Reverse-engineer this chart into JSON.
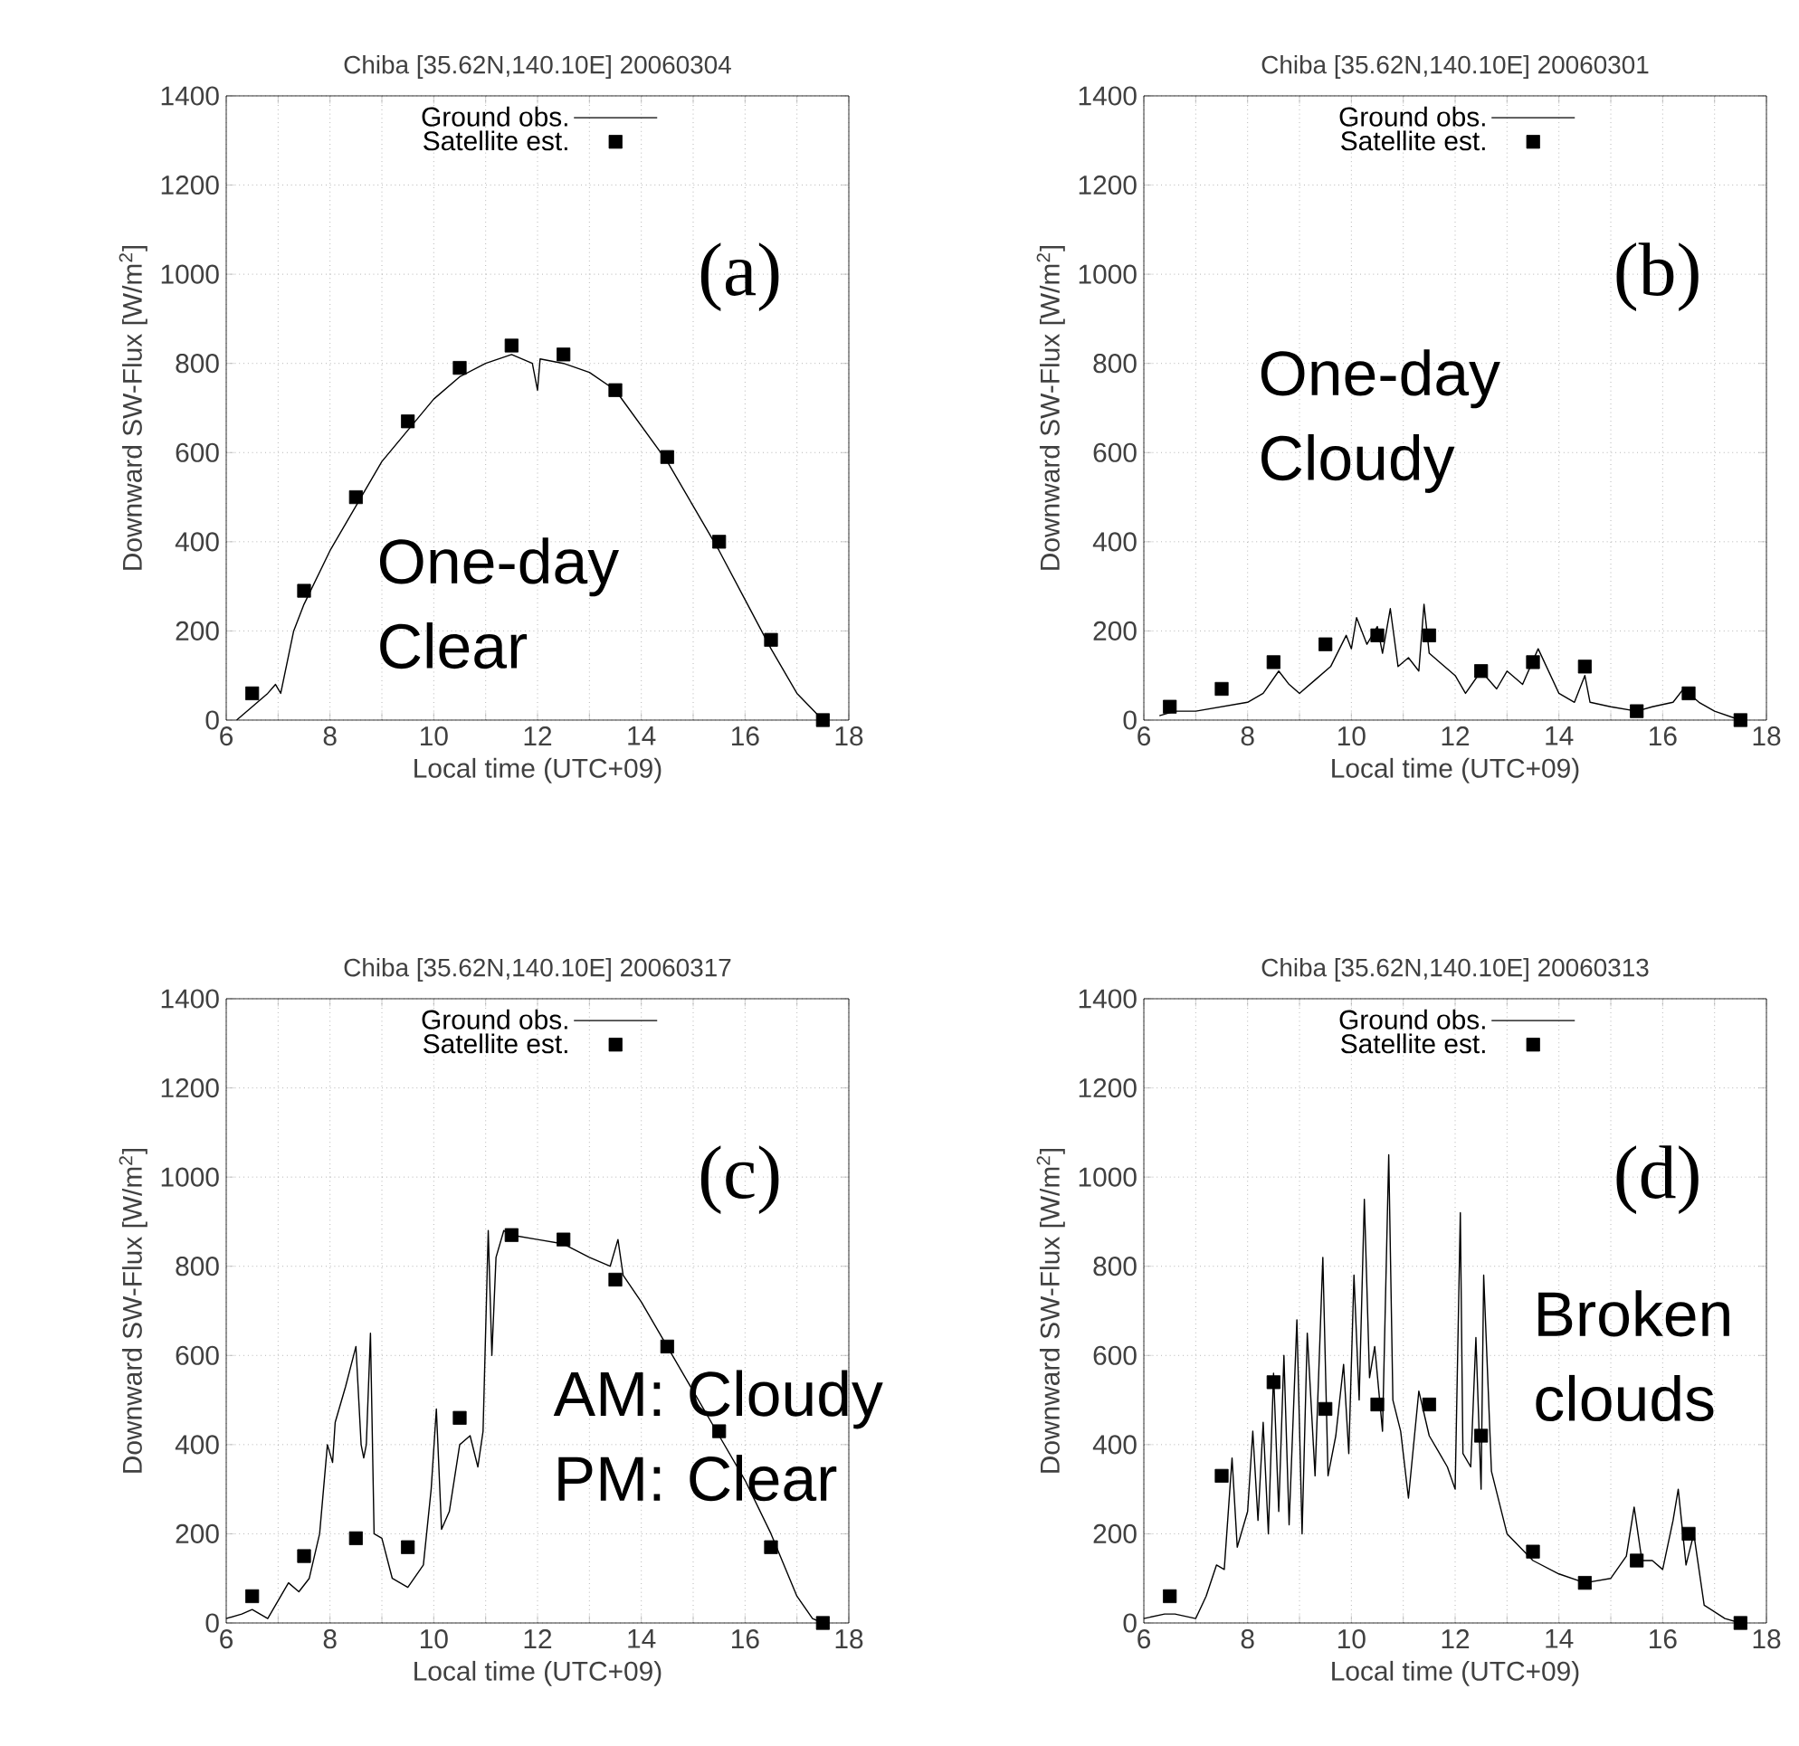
{
  "chart_data": [
    {
      "type": "line",
      "title": "Chiba [35.62N,140.10E] 20060304",
      "xlabel": "Local time (UTC+09)",
      "ylabel": "Downward SW-Flux [W/m$^{2}$]",
      "annotations": [
        "(a)",
        "One-day Clear"
      ],
      "xlim": [
        6,
        18
      ],
      "ylim": [
        0,
        1400
      ],
      "xticks": [
        6,
        {
          "value": 7,
          "label": null
        },
        8,
        {
          "value": 9,
          "label": null
        },
        10,
        {
          "value": 11,
          "label": null
        },
        12,
        {
          "value": 13,
          "label": null
        },
        14,
        {
          "value": 15,
          "label": null
        },
        16,
        {
          "value": 17,
          "label": null
        },
        18
      ],
      "yticks": [
        0,
        200,
        400,
        600,
        800,
        1000,
        1200,
        1400
      ],
      "grid": true,
      "legend": "top",
      "series": [
        {
          "name": "Ground obs.",
          "type": "line",
          "color": "#000000",
          "marker": "none",
          "x": [
            6.2,
            6.5,
            6.8,
            6.95,
            7.05,
            7.3,
            7.5,
            8,
            8.5,
            9,
            9.5,
            10,
            10.5,
            11,
            11.5,
            11.9,
            12,
            12.05,
            12.5,
            13,
            13.5,
            14,
            14.5,
            15,
            15.5,
            16,
            16.5,
            17,
            17.5
          ],
          "values": [
            0,
            30,
            60,
            80,
            60,
            200,
            260,
            380,
            480,
            580,
            650,
            720,
            770,
            800,
            820,
            800,
            740,
            810,
            800,
            780,
            740,
            660,
            580,
            480,
            380,
            270,
            160,
            60,
            0
          ]
        },
        {
          "name": "Satellite est.",
          "type": "scatter",
          "color": "#000000",
          "marker": "square",
          "x": [
            6.5,
            7.5,
            8.5,
            9.5,
            10.5,
            11.5,
            12.5,
            13.5,
            14.5,
            15.5,
            16.5,
            17.5
          ],
          "values": [
            60,
            290,
            500,
            670,
            790,
            840,
            820,
            740,
            590,
            400,
            180,
            0
          ]
        }
      ]
    },
    {
      "type": "line",
      "title": "Chiba [35.62N,140.10E] 20060301",
      "xlabel": "Local time (UTC+09)",
      "ylabel": "Downward SW-Flux [W/m$^{2}$]",
      "annotations": [
        "(b)",
        "One-day Cloudy"
      ],
      "xlim": [
        6,
        18
      ],
      "ylim": [
        0,
        1400
      ],
      "xticks": [
        6,
        {
          "value": 7,
          "label": null
        },
        8,
        {
          "value": 9,
          "label": null
        },
        10,
        {
          "value": 11,
          "label": null
        },
        12,
        {
          "value": 13,
          "label": null
        },
        14,
        {
          "value": 15,
          "label": null
        },
        16,
        {
          "value": 17,
          "label": null
        },
        18
      ],
      "yticks": [
        0,
        200,
        400,
        600,
        800,
        1000,
        1200,
        1400
      ],
      "grid": true,
      "legend": "top",
      "series": [
        {
          "name": "Ground obs.",
          "type": "line",
          "color": "#000000",
          "marker": "none",
          "x": [
            6.3,
            6.6,
            7,
            7.5,
            8,
            8.3,
            8.6,
            8.8,
            9,
            9.3,
            9.6,
            9.9,
            10,
            10.1,
            10.3,
            10.5,
            10.6,
            10.75,
            10.9,
            11.1,
            11.3,
            11.4,
            11.5,
            11.7,
            12,
            12.2,
            12.5,
            12.8,
            13,
            13.3,
            13.6,
            13.8,
            14,
            14.3,
            14.5,
            14.6,
            15,
            15.5,
            15.8,
            16.2,
            16.4,
            16.7,
            17,
            17.5
          ],
          "values": [
            10,
            20,
            20,
            30,
            40,
            60,
            110,
            80,
            60,
            90,
            120,
            190,
            160,
            230,
            170,
            210,
            150,
            250,
            120,
            140,
            110,
            260,
            150,
            130,
            100,
            60,
            110,
            70,
            110,
            80,
            160,
            110,
            60,
            40,
            100,
            40,
            30,
            20,
            30,
            40,
            70,
            40,
            20,
            0
          ]
        },
        {
          "name": "Satellite est.",
          "type": "scatter",
          "color": "#000000",
          "marker": "square",
          "x": [
            6.5,
            7.5,
            8.5,
            9.5,
            10.5,
            11.5,
            12.5,
            13.5,
            14.5,
            15.5,
            16.5,
            17.5
          ],
          "values": [
            30,
            70,
            130,
            170,
            190,
            190,
            110,
            130,
            120,
            20,
            60,
            0
          ]
        }
      ]
    },
    {
      "type": "line",
      "title": "Chiba [35.62N,140.10E] 20060317",
      "xlabel": "Local time (UTC+09)",
      "ylabel": "Downward SW-Flux [W/m$^{2}$]",
      "annotations": [
        "(c)",
        "AM: Cloudy PM: Clear"
      ],
      "xlim": [
        6,
        18
      ],
      "ylim": [
        0,
        1400
      ],
      "xticks": [
        6,
        {
          "value": 7,
          "label": null
        },
        8,
        {
          "value": 9,
          "label": null
        },
        10,
        {
          "value": 11,
          "label": null
        },
        12,
        {
          "value": 13,
          "label": null
        },
        14,
        {
          "value": 15,
          "label": null
        },
        16,
        {
          "value": 17,
          "label": null
        },
        18
      ],
      "yticks": [
        0,
        200,
        400,
        600,
        800,
        1000,
        1200,
        1400
      ],
      "grid": true,
      "legend": "top",
      "series": [
        {
          "name": "Ground obs.",
          "type": "line",
          "color": "#000000",
          "marker": "none",
          "x": [
            6,
            6.3,
            6.5,
            6.8,
            7,
            7.2,
            7.4,
            7.6,
            7.8,
            7.95,
            8.05,
            8.1,
            8.3,
            8.5,
            8.6,
            8.65,
            8.7,
            8.78,
            8.85,
            9,
            9.2,
            9.5,
            9.8,
            9.95,
            10.05,
            10.15,
            10.3,
            10.5,
            10.7,
            10.85,
            10.95,
            11.05,
            11.12,
            11.2,
            11.35,
            11.5,
            12,
            12.5,
            13,
            13.4,
            13.55,
            13.65,
            14,
            14.5,
            15,
            15.5,
            16,
            16.5,
            17,
            17.3,
            17.5
          ],
          "values": [
            10,
            20,
            30,
            10,
            50,
            90,
            70,
            100,
            200,
            400,
            360,
            450,
            530,
            620,
            400,
            370,
            400,
            650,
            200,
            190,
            100,
            80,
            130,
            300,
            480,
            210,
            250,
            400,
            420,
            350,
            430,
            880,
            600,
            820,
            880,
            870,
            860,
            850,
            820,
            800,
            860,
            780,
            720,
            620,
            520,
            420,
            320,
            200,
            60,
            10,
            0
          ]
        },
        {
          "name": "Satellite est.",
          "type": "scatter",
          "color": "#000000",
          "marker": "square",
          "x": [
            6.5,
            7.5,
            8.5,
            9.5,
            10.5,
            11.5,
            12.5,
            13.5,
            14.5,
            15.5,
            16.5,
            17.5
          ],
          "values": [
            60,
            150,
            190,
            170,
            460,
            870,
            860,
            770,
            620,
            430,
            170,
            0
          ]
        }
      ]
    },
    {
      "type": "line",
      "title": "Chiba [35.62N,140.10E] 20060313",
      "xlabel": "Local time (UTC+09)",
      "ylabel": "Downward SW-Flux [W/m$^{2}$]",
      "annotations": [
        "(d)",
        "Broken clouds"
      ],
      "xlim": [
        6,
        18
      ],
      "ylim": [
        0,
        1400
      ],
      "xticks": [
        6,
        {
          "value": 7,
          "label": null
        },
        8,
        {
          "value": 9,
          "label": null
        },
        10,
        {
          "value": 11,
          "label": null
        },
        12,
        {
          "value": 13,
          "label": null
        },
        14,
        {
          "value": 15,
          "label": null
        },
        16,
        {
          "value": 17,
          "label": null
        },
        18
      ],
      "yticks": [
        0,
        200,
        400,
        600,
        800,
        1000,
        1200,
        1400
      ],
      "grid": true,
      "legend": "top",
      "series": [
        {
          "name": "Ground obs.",
          "type": "line",
          "color": "#000000",
          "marker": "none",
          "x": [
            6,
            6.4,
            6.6,
            7,
            7.2,
            7.4,
            7.55,
            7.7,
            7.8,
            8,
            8.1,
            8.2,
            8.3,
            8.4,
            8.5,
            8.6,
            8.7,
            8.8,
            8.95,
            9.05,
            9.15,
            9.3,
            9.45,
            9.55,
            9.7,
            9.85,
            9.95,
            10.05,
            10.15,
            10.25,
            10.35,
            10.45,
            10.6,
            10.72,
            10.8,
            10.95,
            11.1,
            11.3,
            11.5,
            11.7,
            11.85,
            12,
            12.1,
            12.15,
            12.3,
            12.4,
            12.5,
            12.55,
            12.7,
            13,
            13.5,
            14,
            14.5,
            15,
            15.3,
            15.45,
            15.6,
            15.8,
            16,
            16.2,
            16.3,
            16.45,
            16.6,
            16.8,
            17.2,
            17.5
          ],
          "values": [
            10,
            20,
            20,
            10,
            60,
            130,
            120,
            370,
            170,
            250,
            430,
            230,
            450,
            200,
            560,
            250,
            600,
            220,
            680,
            200,
            650,
            330,
            820,
            330,
            420,
            580,
            380,
            780,
            500,
            950,
            550,
            620,
            430,
            1050,
            500,
            430,
            280,
            520,
            420,
            380,
            350,
            300,
            920,
            380,
            350,
            640,
            300,
            780,
            340,
            200,
            140,
            110,
            90,
            100,
            150,
            260,
            140,
            140,
            120,
            230,
            300,
            130,
            200,
            40,
            10,
            0
          ]
        },
        {
          "name": "Satellite est.",
          "type": "scatter",
          "color": "#000000",
          "marker": "square",
          "x": [
            6.5,
            7.5,
            8.5,
            9.5,
            10.5,
            11.5,
            12.5,
            13.5,
            14.5,
            15.5,
            16.5,
            17.5
          ],
          "values": [
            60,
            330,
            540,
            480,
            490,
            490,
            420,
            160,
            90,
            140,
            200,
            0
          ]
        }
      ]
    }
  ]
}
